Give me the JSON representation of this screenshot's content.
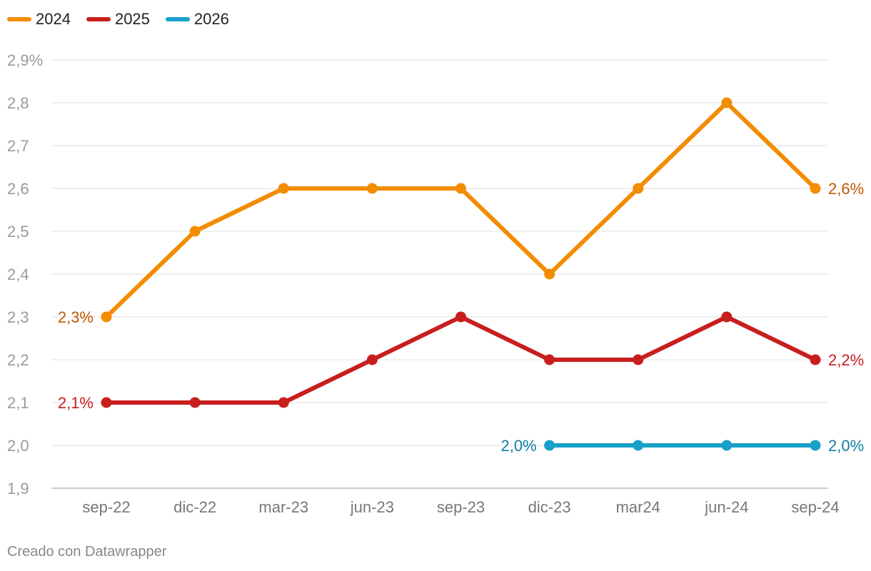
{
  "chart_data": {
    "type": "line",
    "categories": [
      "sep-22",
      "dic-22",
      "mar-23",
      "jun-23",
      "sep-23",
      "dic-23",
      "mar24",
      "jun-24",
      "sep-24"
    ],
    "ylim": [
      1.9,
      2.9
    ],
    "y_ticks": [
      1.9,
      2.0,
      2.1,
      2.2,
      2.3,
      2.4,
      2.5,
      2.6,
      2.7,
      2.8,
      2.9
    ],
    "y_tick_labels": [
      "1,9",
      "2,0",
      "2,1",
      "2,2",
      "2,3",
      "2,4",
      "2,5",
      "2,6",
      "2,7",
      "2,8",
      "2,9%"
    ],
    "grid": true,
    "legend_position": "top-left",
    "series": [
      {
        "name": "2024",
        "color": "#f28c00",
        "label_color": "#c05a00",
        "values": [
          2.3,
          2.5,
          2.6,
          2.6,
          2.6,
          2.4,
          2.6,
          2.8,
          2.6
        ],
        "start_label": "2,3%",
        "end_label": "2,6%"
      },
      {
        "name": "2025",
        "color": "#c81e1e",
        "label_color": "#c81e1e",
        "values": [
          2.1,
          2.1,
          2.1,
          2.2,
          2.3,
          2.2,
          2.2,
          2.3,
          2.2
        ],
        "start_label": "2,1%",
        "end_label": "2,2%"
      },
      {
        "name": "2026",
        "color": "#18a0c8",
        "label_color": "#0f7fa3",
        "values": [
          null,
          null,
          null,
          null,
          null,
          2.0,
          2.0,
          2.0,
          2.0
        ],
        "start_label": "2,0%",
        "end_label": "2,0%"
      }
    ]
  },
  "footer": {
    "credit": "Creado con Datawrapper"
  }
}
